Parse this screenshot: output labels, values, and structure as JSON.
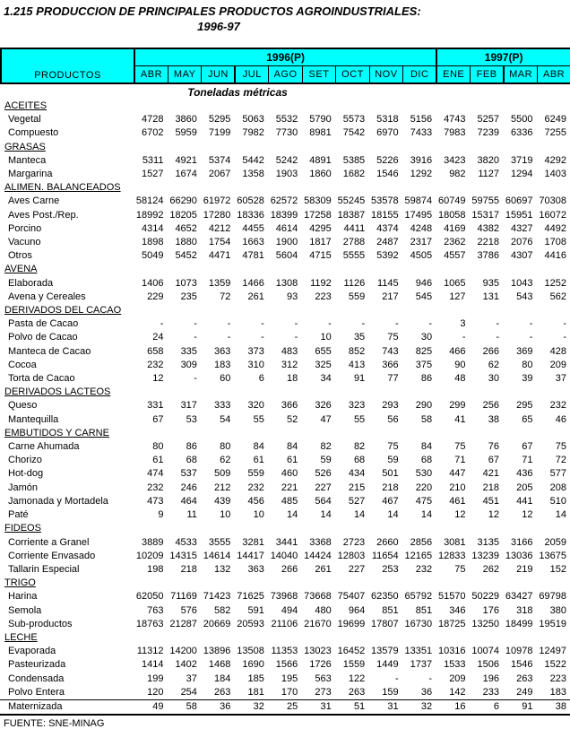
{
  "title": "1.215 PRODUCCION DE PRINCIPALES PRODUCTOS AGROINDUSTRIALES:",
  "subtitle": "1996-97",
  "units_label": "Toneladas métricas",
  "source": "FUENTE: SNE-MINAG",
  "colors": {
    "header_bg": "#00ffff",
    "border": "#000000",
    "text": "#000000",
    "page_bg": "#ffffff"
  },
  "table": {
    "products_header": "PRODUCTOS",
    "year_groups": [
      {
        "label": "1996(P)",
        "months": [
          "ABR",
          "MAY",
          "JUN",
          "JUL",
          "AGO",
          "SET",
          "OCT",
          "NOV",
          "DIC"
        ]
      },
      {
        "label": "1997(P)",
        "months": [
          "ENE",
          "FEB",
          "MAR",
          "ABR"
        ]
      }
    ],
    "sections": [
      {
        "name": "ACEITES",
        "rows": [
          {
            "label": "Vegetal",
            "values": [
              4728,
              3860,
              5295,
              5063,
              5532,
              5790,
              5573,
              5318,
              5156,
              4743,
              5257,
              5500,
              6249
            ]
          },
          {
            "label": "Compuesto",
            "values": [
              6702,
              5959,
              7199,
              7982,
              7730,
              8981,
              7542,
              6970,
              7433,
              7983,
              7239,
              6336,
              7255
            ]
          }
        ]
      },
      {
        "name": "GRASAS",
        "rows": [
          {
            "label": "Manteca",
            "values": [
              5311,
              4921,
              5374,
              5442,
              5242,
              4891,
              5385,
              5226,
              3916,
              3423,
              3820,
              3719,
              4292
            ]
          },
          {
            "label": "Margarina",
            "values": [
              1527,
              1674,
              2067,
              1358,
              1903,
              1860,
              1682,
              1546,
              1292,
              982,
              1127,
              1294,
              1403
            ]
          }
        ]
      },
      {
        "name": "ALIMEN. BALANCEADOS",
        "rows": [
          {
            "label": "Aves Carne",
            "values": [
              58124,
              66290,
              61972,
              60528,
              62572,
              58309,
              55245,
              53578,
              59874,
              60749,
              59755,
              60697,
              70308
            ]
          },
          {
            "label": "Aves Post./Rep.",
            "values": [
              18992,
              18205,
              17280,
              18336,
              18399,
              17258,
              18387,
              18155,
              17495,
              18058,
              15317,
              15951,
              16072
            ]
          },
          {
            "label": "Porcino",
            "values": [
              4314,
              4652,
              4212,
              4455,
              4614,
              4295,
              4411,
              4374,
              4248,
              4169,
              4382,
              4327,
              4492
            ]
          },
          {
            "label": "Vacuno",
            "values": [
              1898,
              1880,
              1754,
              1663,
              1900,
              1817,
              2788,
              2487,
              2317,
              2362,
              2218,
              2076,
              1708
            ]
          },
          {
            "label": "Otros",
            "values": [
              5049,
              5452,
              4471,
              4781,
              5604,
              4715,
              5555,
              5392,
              4505,
              4557,
              3786,
              4307,
              4416
            ]
          }
        ]
      },
      {
        "name": "AVENA",
        "rows": [
          {
            "label": "Elaborada",
            "values": [
              1406,
              1073,
              1359,
              1466,
              1308,
              1192,
              1126,
              1145,
              946,
              1065,
              935,
              1043,
              1252
            ]
          },
          {
            "label": "Avena y Cereales",
            "values": [
              229,
              235,
              72,
              261,
              93,
              223,
              559,
              217,
              545,
              127,
              131,
              543,
              562
            ]
          }
        ]
      },
      {
        "name": "DERIVADOS DEL CACAO",
        "rows": [
          {
            "label": "Pasta de Cacao",
            "values": [
              "-",
              "-",
              "-",
              "-",
              "-",
              "-",
              "-",
              "-",
              "-",
              3,
              "-",
              "-",
              "-"
            ]
          },
          {
            "label": "Polvo de Cacao",
            "values": [
              24,
              "-",
              "-",
              "-",
              "-",
              10,
              35,
              75,
              30,
              "-",
              "-",
              "-",
              "-"
            ]
          },
          {
            "label": "Manteca de Cacao",
            "values": [
              658,
              335,
              363,
              373,
              483,
              655,
              852,
              743,
              825,
              466,
              266,
              369,
              428
            ]
          },
          {
            "label": "Cocoa",
            "values": [
              232,
              309,
              183,
              310,
              312,
              325,
              413,
              366,
              375,
              90,
              62,
              80,
              209
            ]
          },
          {
            "label": "Torta de Cacao",
            "values": [
              12,
              "-",
              60,
              6,
              18,
              34,
              91,
              77,
              86,
              48,
              30,
              39,
              37
            ]
          }
        ]
      },
      {
        "name": "DERIVADOS LACTEOS",
        "rows": [
          {
            "label": "Queso",
            "values": [
              331,
              317,
              333,
              320,
              366,
              326,
              323,
              293,
              290,
              299,
              256,
              295,
              232
            ]
          },
          {
            "label": "Mantequilla",
            "values": [
              67,
              53,
              54,
              55,
              52,
              47,
              55,
              56,
              58,
              41,
              38,
              65,
              46
            ]
          }
        ]
      },
      {
        "name": "EMBUTIDOS Y CARNE",
        "rows": [
          {
            "label": "Carne Ahumada",
            "values": [
              80,
              86,
              80,
              84,
              84,
              82,
              82,
              75,
              84,
              75,
              76,
              67,
              75
            ]
          },
          {
            "label": "Chorizo",
            "values": [
              61,
              68,
              62,
              61,
              61,
              59,
              68,
              59,
              68,
              71,
              67,
              71,
              72
            ]
          },
          {
            "label": "Hot-dog",
            "values": [
              474,
              537,
              509,
              559,
              460,
              526,
              434,
              501,
              530,
              447,
              421,
              436,
              577
            ]
          },
          {
            "label": "Jamón",
            "values": [
              232,
              246,
              212,
              232,
              221,
              227,
              215,
              218,
              220,
              210,
              218,
              205,
              208
            ]
          },
          {
            "label": "Jamonada y Mortadela",
            "values": [
              473,
              464,
              439,
              456,
              485,
              564,
              527,
              467,
              475,
              461,
              451,
              441,
              510
            ]
          },
          {
            "label": "Paté",
            "values": [
              9,
              11,
              10,
              10,
              14,
              14,
              14,
              14,
              14,
              12,
              12,
              12,
              14
            ]
          }
        ]
      },
      {
        "name": "FIDEOS",
        "rows": [
          {
            "label": "Corriente a Granel",
            "values": [
              3889,
              4533,
              3555,
              3281,
              3441,
              3368,
              2723,
              2660,
              2856,
              3081,
              3135,
              3166,
              2059
            ]
          },
          {
            "label": "Corriente Envasado",
            "values": [
              10209,
              14315,
              14614,
              14417,
              14040,
              14424,
              12803,
              11654,
              12165,
              12833,
              13239,
              13036,
              13675
            ]
          },
          {
            "label": "Tallarin Especial",
            "values": [
              198,
              218,
              132,
              363,
              266,
              261,
              227,
              253,
              232,
              75,
              262,
              219,
              152
            ]
          }
        ]
      },
      {
        "name": "TRIGO",
        "rows": [
          {
            "label": "Harina",
            "values": [
              62050,
              71169,
              71423,
              71625,
              73968,
              73668,
              75407,
              62350,
              65792,
              51570,
              50229,
              63427,
              69798
            ]
          },
          {
            "label": "Semola",
            "values": [
              763,
              576,
              582,
              591,
              494,
              480,
              964,
              851,
              851,
              346,
              176,
              318,
              380
            ]
          },
          {
            "label": "Sub-productos",
            "values": [
              18763,
              21287,
              20669,
              20593,
              21106,
              21670,
              19699,
              17807,
              16730,
              18725,
              13250,
              18499,
              19519
            ]
          }
        ]
      },
      {
        "name": "LECHE",
        "rows": [
          {
            "label": "Evaporada",
            "values": [
              11312,
              14200,
              13896,
              13508,
              11353,
              13023,
              16452,
              13579,
              13351,
              10316,
              10074,
              10978,
              12497
            ]
          },
          {
            "label": "Pasteurizada",
            "values": [
              1414,
              1402,
              1468,
              1690,
              1566,
              1726,
              1559,
              1449,
              1737,
              1533,
              1506,
              1546,
              1522
            ]
          },
          {
            "label": "Condensada",
            "values": [
              199,
              37,
              184,
              185,
              195,
              563,
              122,
              "-",
              "-",
              209,
              196,
              263,
              223
            ]
          },
          {
            "label": "Polvo Entera",
            "values": [
              120,
              254,
              263,
              181,
              170,
              273,
              263,
              159,
              36,
              142,
              233,
              249,
              183
            ]
          },
          {
            "label": "Maternizada",
            "values": [
              49,
              58,
              36,
              32,
              25,
              31,
              51,
              31,
              32,
              16,
              6,
              91,
              38
            ]
          }
        ]
      }
    ]
  }
}
